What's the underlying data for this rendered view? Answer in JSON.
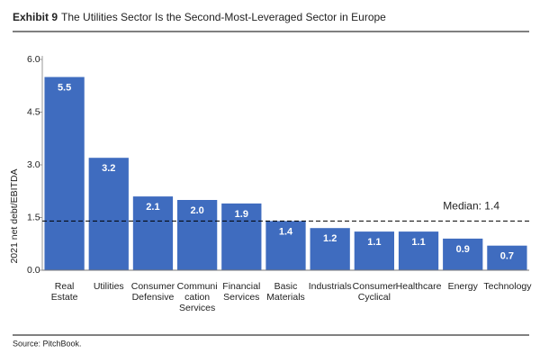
{
  "chart_data": {
    "type": "bar",
    "exhibit": "Exhibit 9",
    "title": "The Utilities Sector Is the Second-Most-Leveraged Sector in Europe",
    "y_label": "2021 net debt/EBITDA",
    "source": "Source: PitchBook.",
    "categories": [
      "Real\nEstate",
      "Utilities",
      "Consumer\nDefensive",
      "Communi\ncation\nServices",
      "Financial\nServices",
      "Basic\nMaterials",
      "Industrials",
      "Consumer\nCyclical",
      "Healthcare",
      "Energy",
      "Technology"
    ],
    "values": [
      5.5,
      3.2,
      2.1,
      2.0,
      1.9,
      1.4,
      1.2,
      1.1,
      1.1,
      0.9,
      0.7
    ],
    "value_labels": [
      "5.5",
      "3.2",
      "2.1",
      "2.0",
      "1.9",
      "1.4",
      "1.2",
      "1.1",
      "1.1",
      "0.9",
      "0.7"
    ],
    "color": "#3f6cbf",
    "ylim": [
      0,
      6
    ],
    "yticks": [
      {
        "value": 0,
        "label": "0.0"
      },
      {
        "value": 1.5,
        "label": "1.5"
      },
      {
        "value": 3,
        "label": "3.0"
      },
      {
        "value": 4.5,
        "label": "4.5"
      },
      {
        "value": 6,
        "label": "6.0"
      }
    ],
    "median": {
      "value": 1.4,
      "label": "Median: 1.4"
    }
  }
}
